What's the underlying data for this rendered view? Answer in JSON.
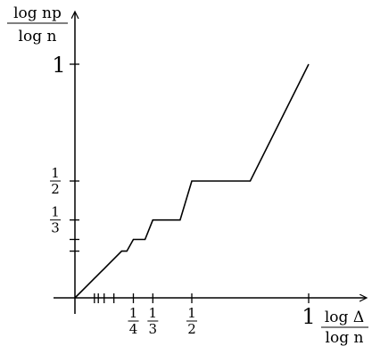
{
  "chart_data": {
    "type": "line",
    "title": "",
    "ylabel": {
      "numerator": "log np",
      "denominator": "log n"
    },
    "xlabel": {
      "numerator": "log Δ",
      "denominator": "log n"
    },
    "xlim": [
      0,
      1.24
    ],
    "ylim": [
      0,
      1.24
    ],
    "grid": false,
    "legend": "none",
    "x_ticks": [
      {
        "value": 0.0833,
        "label": ""
      },
      {
        "value": 0.1,
        "label": ""
      },
      {
        "value": 0.125,
        "label": ""
      },
      {
        "value": 0.1667,
        "label": ""
      },
      {
        "value": 0.25,
        "label": "1/4"
      },
      {
        "value": 0.3333,
        "label": "1/3"
      },
      {
        "value": 0.5,
        "label": "1/2"
      },
      {
        "value": 1,
        "label": "1"
      }
    ],
    "y_ticks": [
      {
        "value": 0.2,
        "label": ""
      },
      {
        "value": 0.25,
        "label": ""
      },
      {
        "value": 0.3333,
        "label": "1/3"
      },
      {
        "value": 0.5,
        "label": "1/2"
      },
      {
        "value": 1,
        "label": "1"
      }
    ],
    "series": [
      {
        "x": [
          0,
          0.05,
          0.06,
          0.0833,
          0.09,
          0.1,
          0.11,
          0.125,
          0.14,
          0.1667,
          0.2,
          0.2222,
          0.25,
          0.3,
          0.3333,
          0.45,
          0.5,
          0.75,
          1
        ],
        "y": [
          0,
          0.05,
          0.06,
          0.0833,
          0.09,
          0.1,
          0.11,
          0.125,
          0.14,
          0.1667,
          0.2,
          0.2,
          0.25,
          0.25,
          0.3333,
          0.3333,
          0.5,
          0.5,
          1
        ]
      }
    ],
    "color": "#000000"
  }
}
